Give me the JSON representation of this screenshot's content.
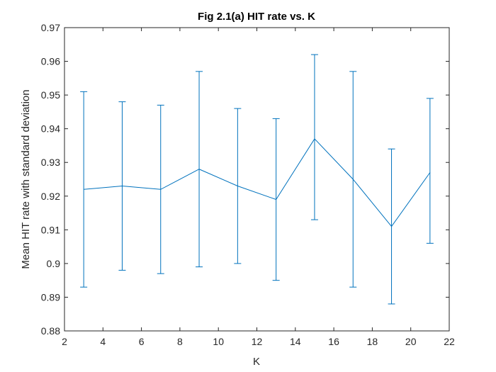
{
  "chart_data": {
    "type": "line",
    "title": "Fig 2.1(a) HIT rate vs. K",
    "xlabel": "K",
    "ylabel": "Mean HIT rate with standard deviation",
    "xlim": [
      2,
      22
    ],
    "ylim": [
      0.88,
      0.97
    ],
    "xticks": [
      2,
      4,
      6,
      8,
      10,
      12,
      14,
      16,
      18,
      20,
      22
    ],
    "yticks": [
      0.88,
      0.89,
      0.9,
      0.91,
      0.92,
      0.93,
      0.94,
      0.95,
      0.96,
      0.97
    ],
    "ytick_labels": [
      "0.88",
      "0.89",
      "0.9",
      "0.91",
      "0.92",
      "0.93",
      "0.94",
      "0.95",
      "0.96",
      "0.97"
    ],
    "grid": false,
    "color": "#0072BD",
    "series": [
      {
        "x": [
          3,
          5,
          7,
          9,
          11,
          13,
          15,
          17,
          19,
          21
        ],
        "y": [
          0.922,
          0.923,
          0.922,
          0.928,
          0.923,
          0.919,
          0.937,
          0.925,
          0.911,
          0.927
        ],
        "lower": [
          0.893,
          0.898,
          0.897,
          0.899,
          0.9,
          0.895,
          0.913,
          0.893,
          0.888,
          0.906
        ],
        "upper": [
          0.951,
          0.948,
          0.947,
          0.957,
          0.946,
          0.943,
          0.962,
          0.957,
          0.934,
          0.949
        ]
      }
    ]
  }
}
